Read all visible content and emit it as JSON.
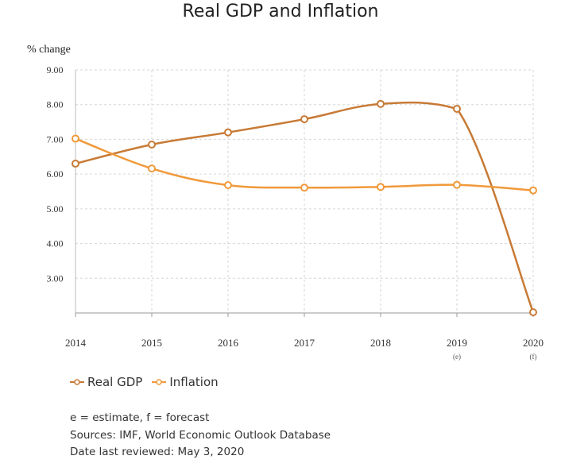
{
  "chart_data": {
    "type": "line",
    "title": "Real GDP and Inflation",
    "ylabel": "% change",
    "xlabel": "",
    "categories": [
      "2014",
      "2015",
      "2016",
      "2017",
      "2018",
      "2019",
      "2020"
    ],
    "category_sublabels": [
      "",
      "",
      "",
      "",
      "",
      "(e)",
      "(f)"
    ],
    "ylim": [
      2.0,
      9.0
    ],
    "yticks": [
      "9.00",
      "8.00",
      "7.00",
      "6.00",
      "5.00",
      "4.00",
      "3.00"
    ],
    "grid": true,
    "legend_position": "bottom-left",
    "series": [
      {
        "name": "Real GDP",
        "color": "#c87a35",
        "values": [
          6.3,
          6.85,
          7.2,
          7.58,
          8.02,
          7.88,
          2.02
        ]
      },
      {
        "name": "Inflation",
        "color": "#f0993a",
        "values": [
          7.02,
          6.16,
          5.68,
          5.61,
          5.63,
          5.69,
          5.53
        ]
      }
    ]
  },
  "notes": [
    "e = estimate, f = forecast",
    "Sources: IMF, World Economic Outlook Database",
    "Date last reviewed: May 3, 2020"
  ]
}
